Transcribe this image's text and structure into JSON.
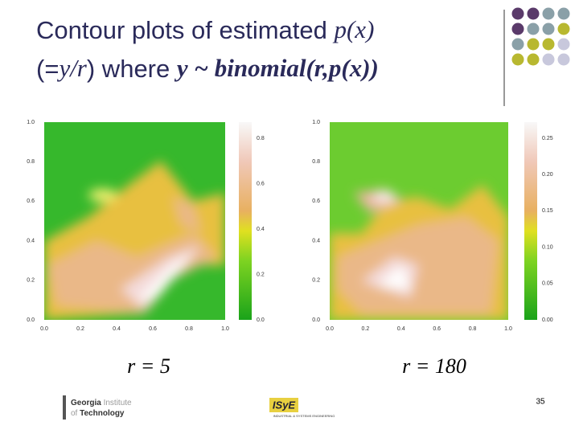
{
  "slide": {
    "title": {
      "line1": [
        "Contour plots of estimated ",
        "p(x)"
      ],
      "line2": [
        "(=",
        "y/r",
        ") where ",
        "y ~ binomial(r,p(x))"
      ]
    },
    "plots": [
      {
        "xticks": [
          "0.0",
          "0.2",
          "0.4",
          "0.6",
          "0.8",
          "1.0"
        ],
        "yticks": [
          "0.0",
          "0.2",
          "0.4",
          "0.6",
          "0.8",
          "1.0"
        ],
        "colorbar_ticks": [
          "0.0",
          "0.2",
          "0.4",
          "0.6",
          "0.8"
        ],
        "caption": "r = 5"
      },
      {
        "xticks": [
          "0.0",
          "0.2",
          "0.4",
          "0.6",
          "0.8",
          "1.0"
        ],
        "yticks": [
          "0.0",
          "0.2",
          "0.4",
          "0.6",
          "0.8",
          "1.0"
        ],
        "colorbar_ticks": [
          "0.00",
          "0.05",
          "0.10",
          "0.15",
          "0.20",
          "0.25"
        ],
        "caption": "r = 180"
      }
    ],
    "footer": {
      "logo_left": [
        "Georgia",
        "Institute",
        "of",
        "Technology"
      ],
      "logo_center": "ISyE",
      "logo_center_sub": "INDUSTRIAL & SYSTEMS ENGINEERING",
      "page_number": "35"
    }
  }
}
